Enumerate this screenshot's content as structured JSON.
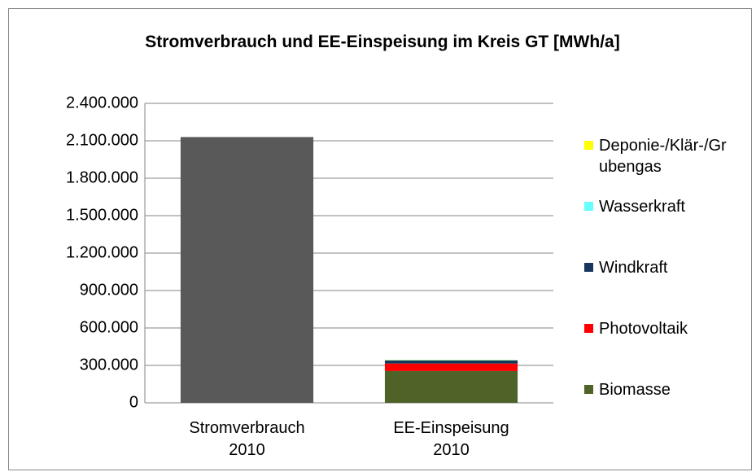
{
  "chart_data": {
    "type": "bar",
    "stacked": true,
    "title": "Stromverbrauch und EE-Einspeisung im Kreis GT [MWh/a]",
    "categories": [
      "Stromverbrauch 2010",
      "EE-Einspeisung 2010"
    ],
    "series": [
      {
        "color": "#595959",
        "values": [
          2130000,
          null
        ]
      },
      {
        "name": "Biomasse",
        "color": "#4f6228",
        "values": [
          null,
          255000
        ]
      },
      {
        "name": "Photovoltaik",
        "color": "#ff0000",
        "values": [
          null,
          60000
        ]
      },
      {
        "name": "Windkraft",
        "color": "#17375e",
        "values": [
          null,
          25000
        ]
      },
      {
        "name": "Wasserkraft",
        "color": "#66ffff",
        "values": [
          null,
          3000
        ]
      },
      {
        "name": "Deponie-/Klär-/Grubengas",
        "color": "#ffff00",
        "values": [
          null,
          2000
        ]
      }
    ],
    "ylim": [
      0,
      2400000
    ],
    "yticks": [
      0,
      {
        "value": 300000,
        "label": "300.000"
      },
      {
        "value": 600000,
        "label": "600.000"
      },
      {
        "value": 900000,
        "label": "900.000"
      },
      {
        "value": 1200000,
        "label": "1.200.000"
      },
      {
        "value": 1500000,
        "label": "1.500.000"
      },
      {
        "value": 1800000,
        "label": "1.800.000"
      },
      {
        "value": 2100000,
        "label": "2.100.000"
      },
      {
        "value": 2400000,
        "label": "2.400.000"
      }
    ],
    "grid": true,
    "legend": "right"
  }
}
